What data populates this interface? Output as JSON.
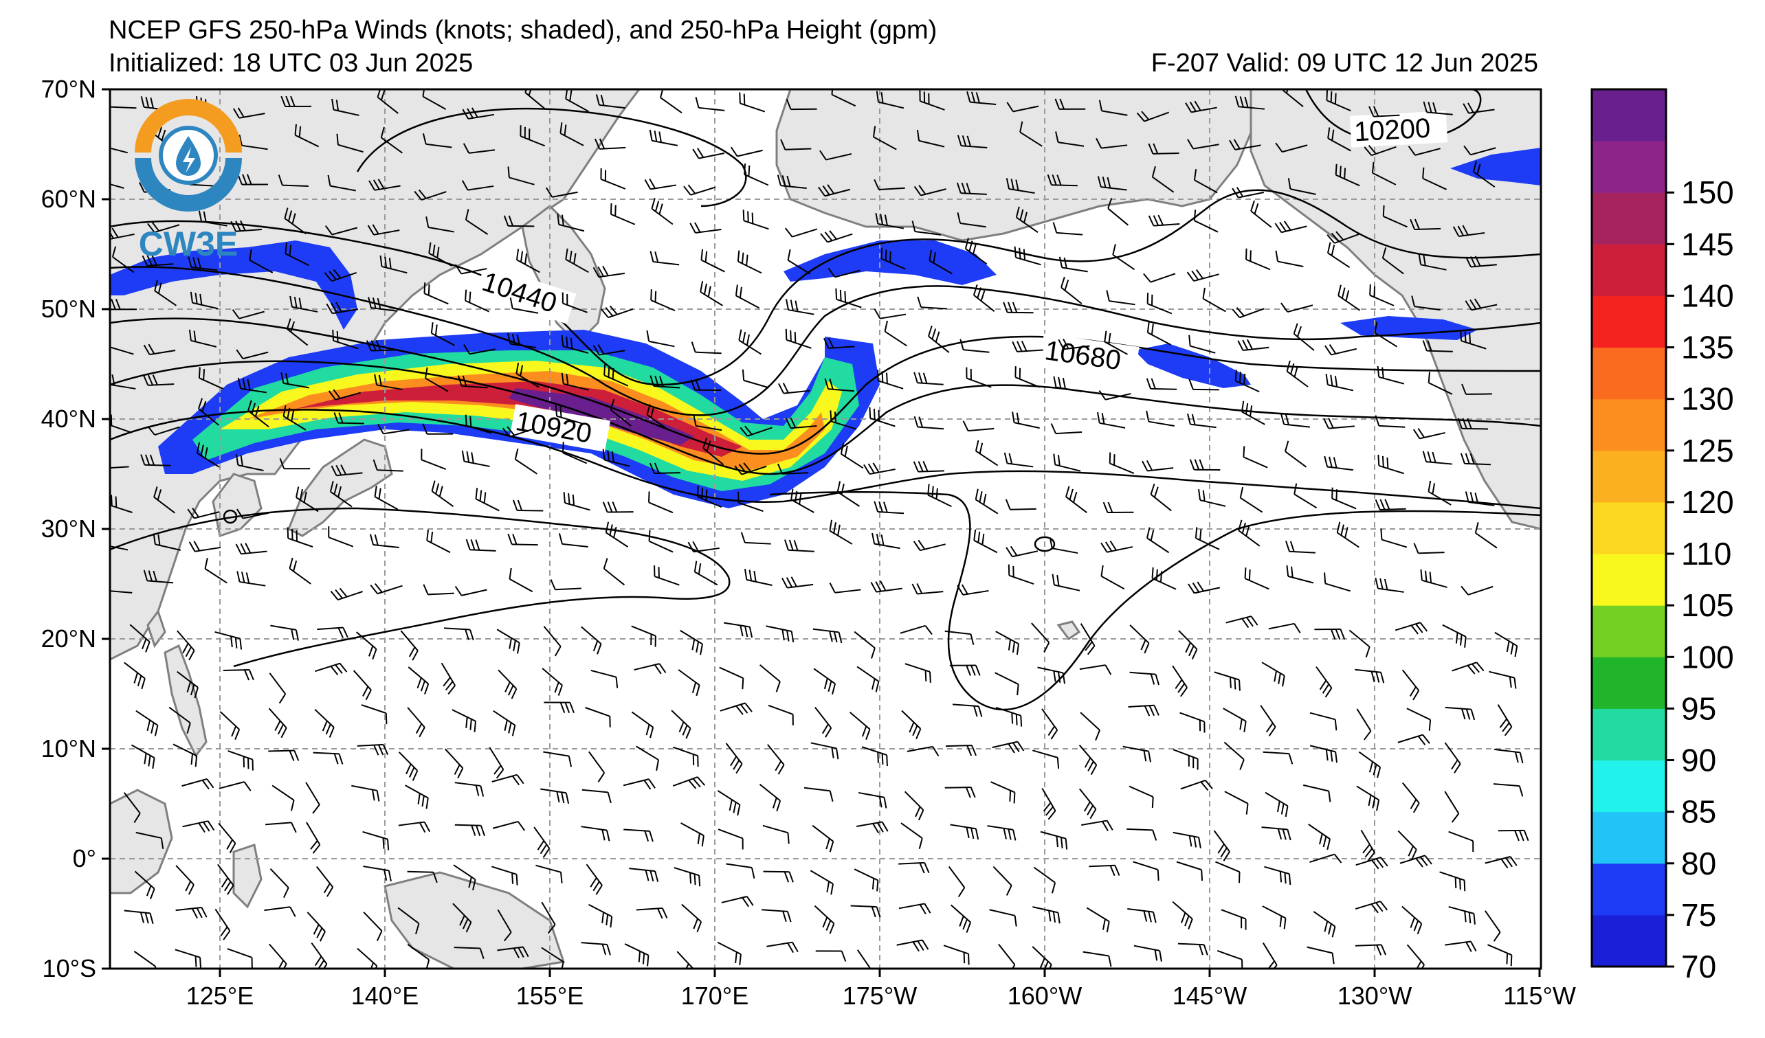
{
  "header": {
    "title": "NCEP GFS 250-hPa Winds (knots; shaded), and 250-hPa Height (gpm)",
    "initialized": "Initialized: 18 UTC 03 Jun 2025",
    "valid": "F-207  Valid: 09 UTC 12 Jun 2025"
  },
  "logo": {
    "text": "CW3E",
    "ring_top_color": "#f39c1f",
    "ring_bottom_color": "#2e86c1"
  },
  "map": {
    "lon_labels": [
      "125°E",
      "140°E",
      "155°E",
      "170°E",
      "175°W",
      "160°W",
      "145°W",
      "130°W",
      "115°W"
    ],
    "lat_labels": [
      "70°N",
      "60°N",
      "50°N",
      "40°N",
      "30°N",
      "20°N",
      "10°N",
      "0°",
      "10°S"
    ],
    "lon_ticks_deg": [
      125,
      140,
      155,
      170,
      185,
      200,
      215,
      230,
      245
    ],
    "lat_ticks_deg": [
      70,
      60,
      50,
      40,
      30,
      20,
      10,
      0,
      -10
    ],
    "extent": {
      "lon_min": 110,
      "lon_max": 245,
      "lat_min": -10,
      "lat_max": 70
    },
    "ocean_color": "#ffffff",
    "land_color": "#e6e6e6",
    "coast_color": "#7f7f7f",
    "grid_color": "#9a9a9a",
    "contour_labels": [
      "10440",
      "10680",
      "10920",
      "10200"
    ]
  },
  "colorbar": {
    "labels": [
      "150",
      "145",
      "140",
      "135",
      "130",
      "125",
      "120",
      "110",
      "105",
      "100",
      "95",
      "90",
      "85",
      "80",
      "75",
      "70"
    ],
    "bins": [
      {
        "value": 70,
        "color": "#1b1fd6"
      },
      {
        "value": 75,
        "color": "#1e3cf5"
      },
      {
        "value": 80,
        "color": "#22c4f7"
      },
      {
        "value": 85,
        "color": "#22f2ec"
      },
      {
        "value": 90,
        "color": "#22dba0"
      },
      {
        "value": 95,
        "color": "#20b52b"
      },
      {
        "value": 100,
        "color": "#72d122"
      },
      {
        "value": 105,
        "color": "#f8f81f"
      },
      {
        "value": 110,
        "color": "#fcd720"
      },
      {
        "value": 120,
        "color": "#fbb11f"
      },
      {
        "value": 125,
        "color": "#fb8e1f"
      },
      {
        "value": 130,
        "color": "#fa6a1f"
      },
      {
        "value": 135,
        "color": "#f5231f"
      },
      {
        "value": 140,
        "color": "#cd1f3a"
      },
      {
        "value": 145,
        "color": "#a6235e"
      },
      {
        "value": 150,
        "color": "#8d248a"
      },
      {
        "value": 155,
        "color": "#6a1f8e"
      }
    ]
  }
}
